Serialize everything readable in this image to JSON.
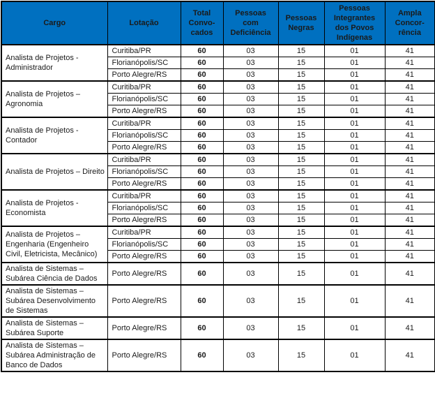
{
  "colors": {
    "header_bg": "#0070C0",
    "header_text": "#FFFFFF",
    "border": "#000000"
  },
  "table": {
    "columns": [
      {
        "key": "cargo",
        "label": "Cargo"
      },
      {
        "key": "lotacao",
        "label": "Lotação"
      },
      {
        "key": "total",
        "label": "Total\nConvo-\ncados"
      },
      {
        "key": "pcd",
        "label": "Pessoas\ncom\nDeficiência"
      },
      {
        "key": "negras",
        "label": "Pessoas\nNegras"
      },
      {
        "key": "indigenas",
        "label": "Pessoas\nIntegrantes\ndos Povos\nIndígenas"
      },
      {
        "key": "ampla",
        "label": "Ampla\nConcor-\nrência"
      }
    ],
    "groups": [
      {
        "cargo": "Analista de Projetos - Administrador",
        "rows": [
          {
            "lotacao": "Curitiba/PR",
            "total": "60",
            "pcd": "03",
            "negras": "15",
            "indigenas": "01",
            "ampla": "41"
          },
          {
            "lotacao": "Florianópolis/SC",
            "total": "60",
            "pcd": "03",
            "negras": "15",
            "indigenas": "01",
            "ampla": "41"
          },
          {
            "lotacao": "Porto Alegre/RS",
            "total": "60",
            "pcd": "03",
            "negras": "15",
            "indigenas": "01",
            "ampla": "41"
          }
        ]
      },
      {
        "cargo": "Analista de Projetos – Agronomia",
        "rows": [
          {
            "lotacao": "Curitiba/PR",
            "total": "60",
            "pcd": "03",
            "negras": "15",
            "indigenas": "01",
            "ampla": "41"
          },
          {
            "lotacao": "Florianópolis/SC",
            "total": "60",
            "pcd": "03",
            "negras": "15",
            "indigenas": "01",
            "ampla": "41"
          },
          {
            "lotacao": "Porto Alegre/RS",
            "total": "60",
            "pcd": "03",
            "negras": "15",
            "indigenas": "01",
            "ampla": "41"
          }
        ]
      },
      {
        "cargo": "Analista de Projetos - Contador",
        "rows": [
          {
            "lotacao": "Curitiba/PR",
            "total": "60",
            "pcd": "03",
            "negras": "15",
            "indigenas": "01",
            "ampla": "41"
          },
          {
            "lotacao": "Florianópolis/SC",
            "total": "60",
            "pcd": "03",
            "negras": "15",
            "indigenas": "01",
            "ampla": "41"
          },
          {
            "lotacao": "Porto Alegre/RS",
            "total": "60",
            "pcd": "03",
            "negras": "15",
            "indigenas": "01",
            "ampla": "41"
          }
        ]
      },
      {
        "cargo": "Analista de Projetos – Direito",
        "rows": [
          {
            "lotacao": "Curitiba/PR",
            "total": "60",
            "pcd": "03",
            "negras": "15",
            "indigenas": "01",
            "ampla": "41"
          },
          {
            "lotacao": "Florianópolis/SC",
            "total": "60",
            "pcd": "03",
            "negras": "15",
            "indigenas": "01",
            "ampla": "41"
          },
          {
            "lotacao": "Porto Alegre/RS",
            "total": "60",
            "pcd": "03",
            "negras": "15",
            "indigenas": "01",
            "ampla": "41"
          }
        ]
      },
      {
        "cargo": "Analista de Projetos - Economista",
        "rows": [
          {
            "lotacao": "Curitiba/PR",
            "total": "60",
            "pcd": "03",
            "negras": "15",
            "indigenas": "01",
            "ampla": "41"
          },
          {
            "lotacao": "Florianópolis/SC",
            "total": "60",
            "pcd": "03",
            "negras": "15",
            "indigenas": "01",
            "ampla": "41"
          },
          {
            "lotacao": "Porto Alegre/RS",
            "total": "60",
            "pcd": "03",
            "negras": "15",
            "indigenas": "01",
            "ampla": "41"
          }
        ]
      },
      {
        "cargo": "Analista de Projetos – Engenharia (Engenheiro Civil, Eletricista, Mecânico)",
        "rows": [
          {
            "lotacao": "Curitiba/PR",
            "total": "60",
            "pcd": "03",
            "negras": "15",
            "indigenas": "01",
            "ampla": "41"
          },
          {
            "lotacao": "Florianópolis/SC",
            "total": "60",
            "pcd": "03",
            "negras": "15",
            "indigenas": "01",
            "ampla": "41"
          },
          {
            "lotacao": "Porto Alegre/RS",
            "total": "60",
            "pcd": "03",
            "negras": "15",
            "indigenas": "01",
            "ampla": "41"
          }
        ]
      },
      {
        "cargo": "Analista de Sistemas – Subárea Ciência de Dados",
        "rows": [
          {
            "lotacao": "Porto Alegre/RS",
            "total": "60",
            "pcd": "03",
            "negras": "15",
            "indigenas": "01",
            "ampla": "41"
          }
        ]
      },
      {
        "cargo": "Analista de Sistemas – Subárea Desenvolvimento de Sistemas",
        "rows": [
          {
            "lotacao": "Porto Alegre/RS",
            "total": "60",
            "pcd": "03",
            "negras": "15",
            "indigenas": "01",
            "ampla": "41"
          }
        ]
      },
      {
        "cargo": "Analista de Sistemas – Subárea Suporte",
        "rows": [
          {
            "lotacao": "Porto Alegre/RS",
            "total": "60",
            "pcd": "03",
            "negras": "15",
            "indigenas": "01",
            "ampla": "41"
          }
        ]
      },
      {
        "cargo": "Analista de Sistemas – Subárea Administração de Banco de Dados",
        "rows": [
          {
            "lotacao": "Porto Alegre/RS",
            "total": "60",
            "pcd": "03",
            "negras": "15",
            "indigenas": "01",
            "ampla": "41"
          }
        ]
      }
    ]
  }
}
